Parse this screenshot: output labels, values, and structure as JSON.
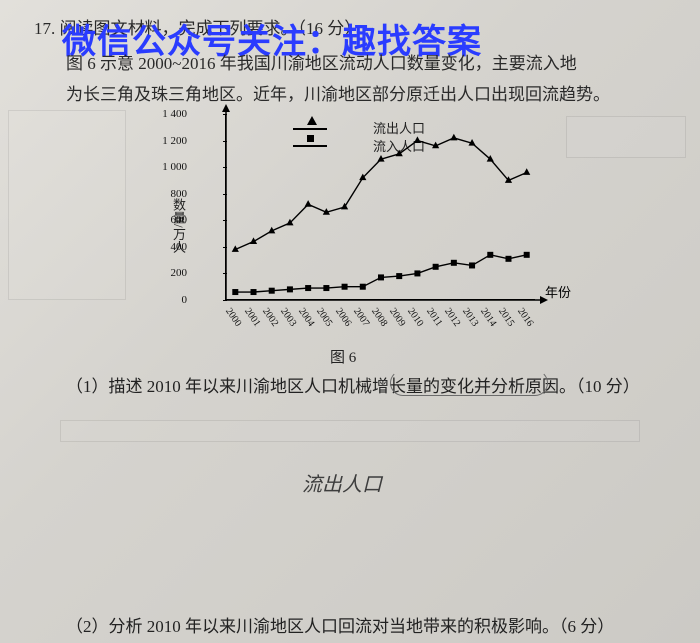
{
  "watermark": "微信公众号关注：趣找答案",
  "question": {
    "number": "17.",
    "stem_line1": "阅读图文材料，完成下列要求。（16 分）",
    "stem_line2_a": "图 6 示意 2000~2016 年我国川渝地区流动人口数量变化，主要流入地",
    "stem_line2_b": "为长三角及珠三角地区。近年，川渝地区部分原迁出人口出现回流趋势。",
    "fig_caption": "图 6",
    "sub1": "（1）描述 2010 年以来川渝地区人口机械增长量的变化并分析原因。（10 分）",
    "sub2": "（2）分析 2010 年以来川渝地区人口回流对当地带来的积极影响。（6 分）",
    "handwritten": "流出人口"
  },
  "chart": {
    "type": "line+scatter",
    "ylabel": "数量/万人",
    "xlabel": "年份",
    "legend_out": "流出人口",
    "legend_in": "流入人口",
    "ylim": [
      0,
      1400
    ],
    "ytick_step": 200,
    "yticks": [
      "0",
      "200",
      "400",
      "600",
      "800",
      "1 000",
      "1 200",
      "1 400"
    ],
    "years": [
      "2000",
      "2001",
      "2002",
      "2003",
      "2004",
      "2005",
      "2006",
      "2007",
      "2008",
      "2009",
      "2010",
      "2011",
      "2012",
      "2013",
      "2014",
      "2015",
      "2016"
    ],
    "series_out_values": [
      380,
      440,
      520,
      580,
      720,
      660,
      700,
      920,
      1060,
      1100,
      1200,
      1160,
      1220,
      1180,
      1060,
      900,
      960
    ],
    "series_in_values": [
      60,
      60,
      70,
      80,
      90,
      90,
      100,
      100,
      170,
      180,
      200,
      250,
      280,
      260,
      340,
      310,
      340
    ],
    "line_color": "#000000",
    "marker_out": "triangle",
    "marker_in": "square",
    "marker_size": 6,
    "background_color": "#d8d6d2",
    "label_fontsize": 13,
    "tick_fontsize": 11
  }
}
